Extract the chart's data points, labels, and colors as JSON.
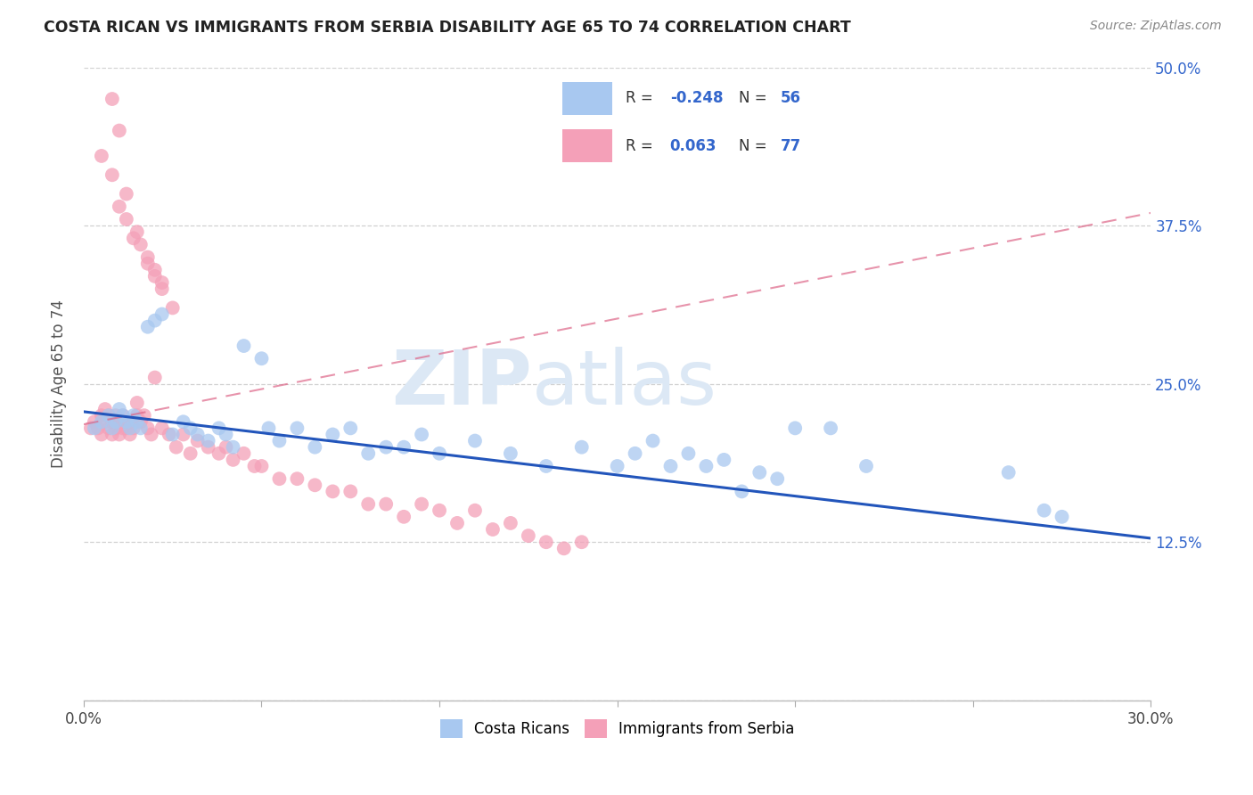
{
  "title": "COSTA RICAN VS IMMIGRANTS FROM SERBIA DISABILITY AGE 65 TO 74 CORRELATION CHART",
  "source": "Source: ZipAtlas.com",
  "ylabel": "Disability Age 65 to 74",
  "xlim": [
    0.0,
    0.3
  ],
  "ylim": [
    0.0,
    0.5
  ],
  "blue_color": "#a8c8f0",
  "pink_color": "#f4a0b8",
  "blue_line_color": "#2255bb",
  "pink_line_color": "#dd6688",
  "watermark_color": "#dce8f5",
  "r_blue": "-0.248",
  "n_blue": "56",
  "r_pink": "0.063",
  "n_pink": "77",
  "blue_x": [
    0.003,
    0.005,
    0.007,
    0.008,
    0.009,
    0.01,
    0.011,
    0.012,
    0.013,
    0.014,
    0.015,
    0.016,
    0.018,
    0.02,
    0.022,
    0.025,
    0.028,
    0.03,
    0.032,
    0.035,
    0.038,
    0.04,
    0.042,
    0.045,
    0.05,
    0.052,
    0.055,
    0.06,
    0.065,
    0.07,
    0.075,
    0.08,
    0.085,
    0.09,
    0.095,
    0.1,
    0.11,
    0.12,
    0.13,
    0.14,
    0.15,
    0.155,
    0.16,
    0.165,
    0.17,
    0.175,
    0.18,
    0.185,
    0.19,
    0.195,
    0.2,
    0.21,
    0.22,
    0.26,
    0.27,
    0.275
  ],
  "blue_y": [
    0.215,
    0.22,
    0.225,
    0.215,
    0.22,
    0.23,
    0.225,
    0.22,
    0.215,
    0.225,
    0.22,
    0.215,
    0.295,
    0.3,
    0.305,
    0.21,
    0.22,
    0.215,
    0.21,
    0.205,
    0.215,
    0.21,
    0.2,
    0.28,
    0.27,
    0.215,
    0.205,
    0.215,
    0.2,
    0.21,
    0.215,
    0.195,
    0.2,
    0.2,
    0.21,
    0.195,
    0.205,
    0.195,
    0.185,
    0.2,
    0.185,
    0.195,
    0.205,
    0.185,
    0.195,
    0.185,
    0.19,
    0.165,
    0.18,
    0.175,
    0.215,
    0.215,
    0.185,
    0.18,
    0.15,
    0.145
  ],
  "pink_x": [
    0.002,
    0.003,
    0.004,
    0.005,
    0.005,
    0.006,
    0.006,
    0.007,
    0.007,
    0.008,
    0.008,
    0.009,
    0.009,
    0.01,
    0.01,
    0.011,
    0.011,
    0.012,
    0.012,
    0.013,
    0.013,
    0.014,
    0.015,
    0.015,
    0.016,
    0.017,
    0.018,
    0.019,
    0.02,
    0.022,
    0.024,
    0.026,
    0.028,
    0.03,
    0.032,
    0.035,
    0.038,
    0.04,
    0.042,
    0.045,
    0.048,
    0.05,
    0.055,
    0.06,
    0.065,
    0.07,
    0.075,
    0.08,
    0.085,
    0.09,
    0.095,
    0.1,
    0.105,
    0.11,
    0.115,
    0.12,
    0.125,
    0.13,
    0.135,
    0.14,
    0.005,
    0.008,
    0.01,
    0.012,
    0.014,
    0.016,
    0.018,
    0.02,
    0.022,
    0.025,
    0.008,
    0.01,
    0.012,
    0.015,
    0.018,
    0.02,
    0.022
  ],
  "pink_y": [
    0.215,
    0.22,
    0.215,
    0.21,
    0.225,
    0.22,
    0.23,
    0.215,
    0.225,
    0.21,
    0.22,
    0.215,
    0.225,
    0.22,
    0.21,
    0.215,
    0.225,
    0.22,
    0.215,
    0.21,
    0.22,
    0.215,
    0.225,
    0.235,
    0.22,
    0.225,
    0.215,
    0.21,
    0.255,
    0.215,
    0.21,
    0.2,
    0.21,
    0.195,
    0.205,
    0.2,
    0.195,
    0.2,
    0.19,
    0.195,
    0.185,
    0.185,
    0.175,
    0.175,
    0.17,
    0.165,
    0.165,
    0.155,
    0.155,
    0.145,
    0.155,
    0.15,
    0.14,
    0.15,
    0.135,
    0.14,
    0.13,
    0.125,
    0.12,
    0.125,
    0.43,
    0.415,
    0.39,
    0.38,
    0.365,
    0.36,
    0.345,
    0.335,
    0.33,
    0.31,
    0.475,
    0.45,
    0.4,
    0.37,
    0.35,
    0.34,
    0.325
  ],
  "blue_line_x": [
    0.0,
    0.3
  ],
  "blue_line_y": [
    0.228,
    0.128
  ],
  "pink_line_x": [
    0.0,
    0.3
  ],
  "pink_line_y": [
    0.218,
    0.385
  ]
}
